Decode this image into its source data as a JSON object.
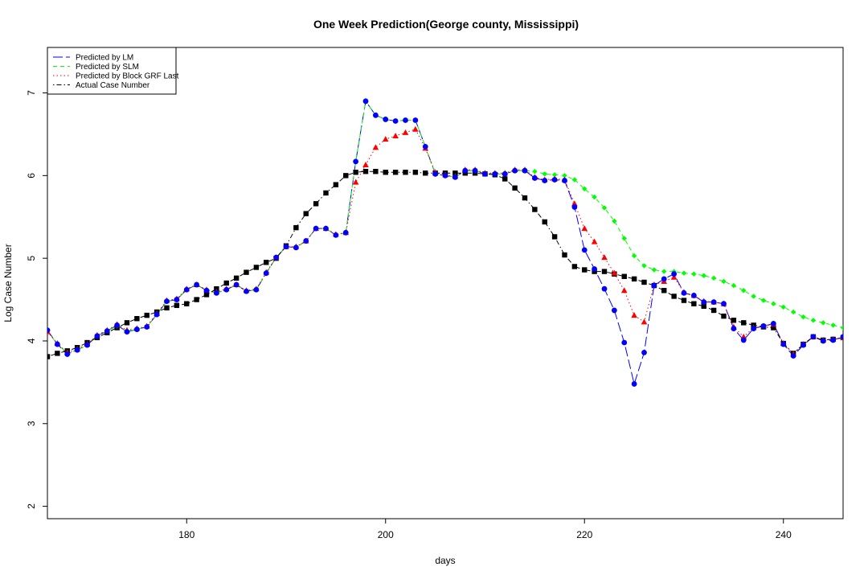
{
  "chart_data": {
    "type": "line",
    "title": "One Week Prediction(George county, Mississippi)",
    "xlabel": "days",
    "ylabel": "Log Case Number",
    "xlim": [
      166,
      246
    ],
    "ylim": [
      1.85,
      7.55
    ],
    "xticks": [
      180,
      200,
      220,
      240
    ],
    "yticks": [
      2,
      3,
      4,
      5,
      6,
      7
    ],
    "legend_position": "top-left",
    "x": [
      166,
      167,
      168,
      169,
      170,
      171,
      172,
      173,
      174,
      175,
      176,
      177,
      178,
      179,
      180,
      181,
      182,
      183,
      184,
      185,
      186,
      187,
      188,
      189,
      190,
      191,
      192,
      193,
      194,
      195,
      196,
      197,
      198,
      199,
      200,
      201,
      202,
      203,
      204,
      205,
      206,
      207,
      208,
      209,
      210,
      211,
      212,
      213,
      214,
      215,
      216,
      217,
      218,
      219,
      220,
      221,
      222,
      223,
      224,
      225,
      226,
      227,
      228,
      229,
      230,
      231,
      232,
      233,
      234,
      235,
      236,
      237,
      238,
      239,
      240,
      241,
      242,
      243,
      244,
      245,
      246
    ],
    "series": [
      {
        "name": "Predicted by LM",
        "color": "#0000ff",
        "style": "longdash",
        "marker": "circle",
        "values": [
          4.13,
          3.96,
          3.84,
          3.89,
          3.95,
          4.06,
          4.12,
          4.19,
          4.11,
          4.14,
          4.17,
          4.32,
          4.48,
          4.5,
          4.62,
          4.68,
          4.61,
          4.58,
          4.62,
          4.68,
          4.6,
          4.62,
          4.82,
          5.01,
          5.14,
          5.13,
          5.21,
          5.36,
          5.36,
          5.28,
          5.31,
          6.17,
          6.9,
          6.73,
          6.68,
          6.66,
          6.67,
          6.67,
          6.35,
          6.02,
          6.0,
          5.98,
          6.06,
          6.06,
          6.02,
          6.02,
          6.02,
          6.06,
          6.06,
          5.97,
          5.94,
          5.95,
          5.94,
          5.62,
          5.1,
          4.87,
          4.63,
          4.37,
          3.98,
          3.48,
          3.86,
          4.67,
          4.75,
          4.81,
          4.58,
          4.55,
          4.47,
          4.47,
          4.45,
          4.15,
          4.01,
          4.15,
          4.18,
          4.21,
          3.96,
          3.82,
          3.95,
          4.05,
          4.0,
          4.01,
          4.05
        ]
      },
      {
        "name": "Predicted by SLM",
        "color": "#00ff00",
        "style": "dashed",
        "marker": "diamond",
        "values": [
          4.12,
          3.96,
          3.85,
          3.89,
          3.95,
          4.06,
          4.12,
          4.18,
          4.12,
          4.14,
          4.17,
          4.32,
          4.48,
          4.5,
          4.62,
          4.68,
          4.61,
          4.58,
          4.62,
          4.68,
          4.6,
          4.62,
          4.82,
          5.01,
          5.14,
          5.13,
          5.21,
          5.36,
          5.36,
          5.28,
          5.31,
          6.17,
          6.9,
          6.73,
          6.68,
          6.66,
          6.67,
          6.67,
          6.35,
          6.02,
          6.0,
          5.98,
          6.06,
          6.06,
          6.02,
          6.02,
          6.02,
          6.06,
          6.06,
          6.05,
          6.02,
          6.01,
          6.0,
          5.95,
          5.84,
          5.74,
          5.61,
          5.45,
          5.24,
          5.03,
          4.91,
          4.86,
          4.84,
          4.84,
          4.82,
          4.81,
          4.79,
          4.76,
          4.72,
          4.67,
          4.61,
          4.54,
          4.49,
          4.45,
          4.41,
          4.35,
          4.29,
          4.25,
          4.22,
          4.19,
          4.16
        ]
      },
      {
        "name": "Predicted by Block GRF Last",
        "color": "#ff0000",
        "style": "dotted",
        "marker": "triangle",
        "values": [
          4.11,
          3.97,
          3.86,
          3.9,
          3.96,
          4.07,
          4.13,
          4.2,
          4.13,
          4.15,
          4.18,
          4.33,
          4.49,
          4.51,
          4.63,
          4.68,
          4.62,
          4.59,
          4.63,
          4.68,
          4.61,
          4.63,
          4.83,
          5.01,
          5.14,
          5.14,
          5.21,
          5.36,
          5.36,
          5.29,
          5.31,
          5.92,
          6.13,
          6.34,
          6.44,
          6.48,
          6.52,
          6.56,
          6.33,
          6.04,
          6.01,
          5.99,
          6.07,
          6.07,
          6.03,
          6.03,
          6.03,
          6.07,
          6.07,
          5.98,
          5.95,
          5.96,
          5.95,
          5.66,
          5.36,
          5.2,
          5.01,
          4.82,
          4.61,
          4.31,
          4.23,
          4.68,
          4.72,
          4.77,
          4.59,
          4.55,
          4.48,
          4.47,
          4.45,
          4.17,
          4.05,
          4.16,
          4.18,
          4.2,
          3.97,
          3.84,
          3.96,
          4.05,
          4.01,
          4.02,
          4.04
        ]
      },
      {
        "name": "Actual Case Number",
        "color": "#000000",
        "style": "dotdash",
        "marker": "square",
        "values": [
          3.81,
          3.85,
          3.88,
          3.92,
          3.98,
          4.04,
          4.1,
          4.16,
          4.22,
          4.27,
          4.31,
          4.35,
          4.4,
          4.43,
          4.45,
          4.5,
          4.56,
          4.63,
          4.7,
          4.76,
          4.83,
          4.89,
          4.95,
          5.0,
          5.15,
          5.37,
          5.54,
          5.66,
          5.79,
          5.89,
          6.0,
          6.04,
          6.05,
          6.05,
          6.04,
          6.04,
          6.04,
          6.04,
          6.03,
          6.03,
          6.03,
          6.03,
          6.03,
          6.03,
          6.02,
          6.01,
          5.96,
          5.85,
          5.73,
          5.59,
          5.44,
          5.26,
          5.04,
          4.9,
          4.86,
          4.84,
          4.84,
          4.81,
          4.78,
          4.75,
          4.71,
          4.67,
          4.61,
          4.54,
          4.49,
          4.45,
          4.42,
          4.37,
          4.3,
          4.25,
          4.22,
          4.19,
          4.17,
          4.16,
          3.97,
          3.85,
          3.96,
          4.05,
          4.01,
          4.02,
          4.04
        ]
      }
    ]
  }
}
